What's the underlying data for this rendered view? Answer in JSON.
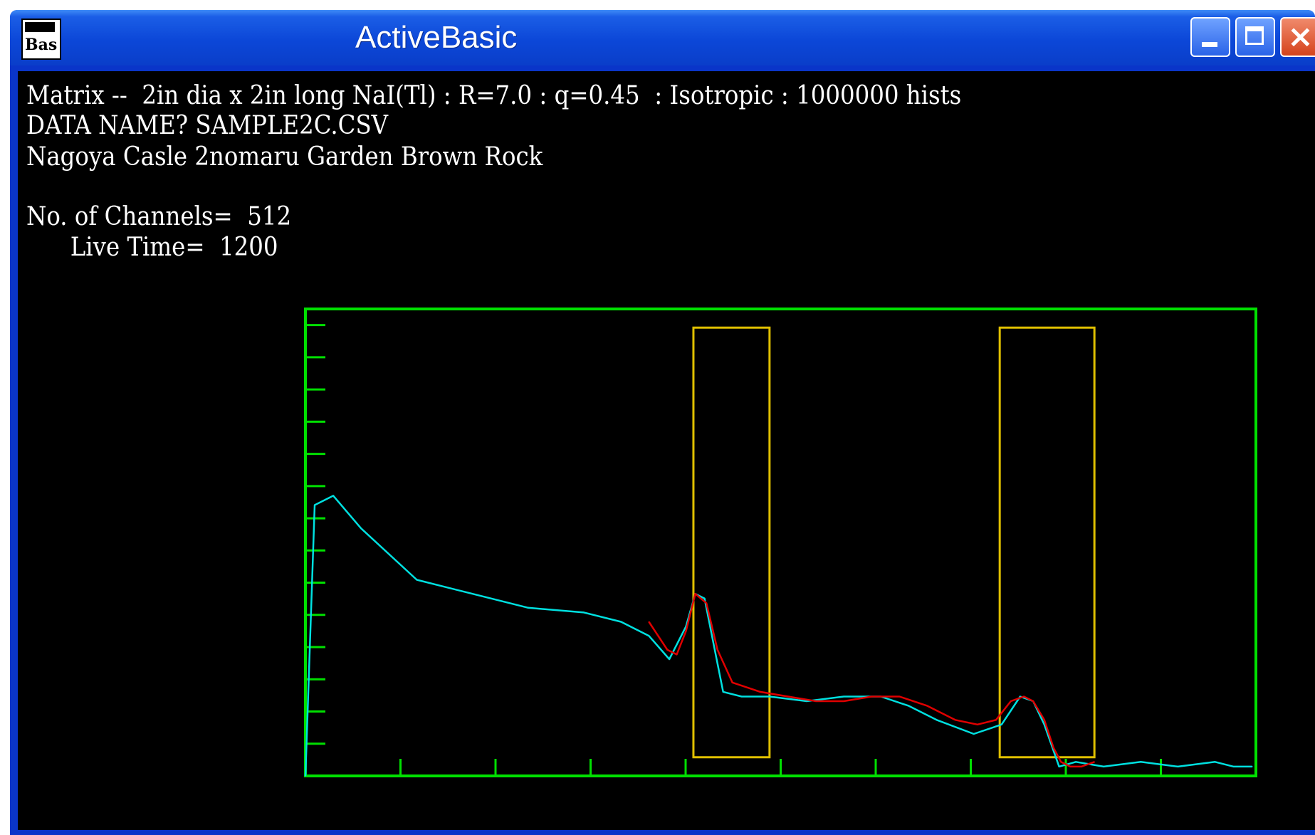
{
  "window": {
    "title": "ActiveBasic",
    "icon_label": "Bas",
    "icon": "app-icon",
    "buttons": [
      "minimize",
      "maximize",
      "close"
    ]
  },
  "console": {
    "line1": "Matrix --  2in dia x 2in long NaI(Tl) : R=7.0 : q=0.45  : Isotropic : 1000000 hists",
    "line2": "DATA NAME? SAMPLE2C.CSV",
    "line3": "Nagoya Casle 2nomaru Garden Brown Rock",
    "line4": "No. of Channels=  512",
    "line5": "      Live Time=  1200"
  },
  "colors": {
    "background": "#000000",
    "frame": "#00e000",
    "spectrum": "#00e0e0",
    "fit": "#e00000",
    "roi": "#e0c000",
    "titlebar": "#0a3ec9"
  },
  "chart_data": {
    "type": "line",
    "title": "",
    "xlabel": "",
    "ylabel": "",
    "xlim": [
      0,
      512
    ],
    "ylim": [
      0,
      1
    ],
    "x_ticks": 10,
    "y_ticks": 14,
    "series": [
      {
        "x": [
          0,
          5,
          15,
          30,
          60,
          90,
          120,
          150,
          170,
          185,
          196,
          205,
          210,
          215,
          220,
          225,
          235,
          250,
          270,
          290,
          310,
          325,
          340,
          360,
          375,
          385,
          392,
          398,
          406,
          415,
          430,
          450,
          470,
          490,
          500,
          510
        ],
        "y": [
          0.0,
          0.58,
          0.6,
          0.53,
          0.42,
          0.39,
          0.36,
          0.35,
          0.33,
          0.3,
          0.25,
          0.32,
          0.39,
          0.38,
          0.28,
          0.18,
          0.17,
          0.17,
          0.16,
          0.17,
          0.17,
          0.15,
          0.12,
          0.09,
          0.11,
          0.17,
          0.16,
          0.11,
          0.02,
          0.03,
          0.02,
          0.03,
          0.02,
          0.03,
          0.02,
          0.02
        ]
      },
      {
        "x": [
          185,
          195,
          200,
          205,
          210,
          216,
          222,
          230,
          245,
          260,
          275,
          290,
          305,
          320,
          335,
          350,
          362,
          372,
          380,
          387,
          392,
          398,
          403,
          407,
          412,
          418,
          425
        ],
        "y": [
          0.33,
          0.27,
          0.26,
          0.31,
          0.39,
          0.37,
          0.27,
          0.2,
          0.18,
          0.17,
          0.16,
          0.16,
          0.17,
          0.17,
          0.15,
          0.12,
          0.11,
          0.12,
          0.16,
          0.17,
          0.16,
          0.12,
          0.06,
          0.03,
          0.02,
          0.02,
          0.03
        ]
      }
    ],
    "roi": [
      {
        "x": [
          209,
          250
        ],
        "y": [
          0.04,
          0.96
        ]
      },
      {
        "x": [
          374,
          425
        ],
        "y": [
          0.04,
          0.96
        ]
      }
    ]
  }
}
